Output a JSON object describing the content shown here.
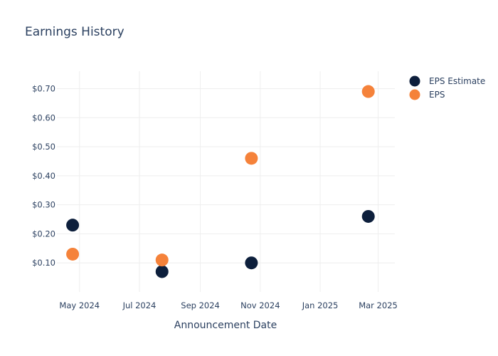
{
  "chart_data": {
    "type": "scatter",
    "title": "Earnings History",
    "xlabel": "Announcement Date",
    "ylabel": "",
    "x_ticks": [
      "May 2024",
      "Jul 2024",
      "Sep 2024",
      "Nov 2024",
      "Jan 2025",
      "Mar 2025"
    ],
    "y_ticks": [
      "$0.10",
      "$0.20",
      "$0.30",
      "$0.40",
      "$0.50",
      "$0.60",
      "$0.70"
    ],
    "xlim": [
      "2024-04-08",
      "2025-03-18"
    ],
    "ylim": [
      0,
      0.76
    ],
    "grid": true,
    "legend_position": "top-right",
    "series": [
      {
        "name": "EPS Estimate",
        "color": "#0d1f3c",
        "points": [
          {
            "x": "2024-04-24",
            "y": 0.23
          },
          {
            "x": "2024-07-24",
            "y": 0.07
          },
          {
            "x": "2024-10-23",
            "y": 0.1
          },
          {
            "x": "2025-02-19",
            "y": 0.26
          }
        ]
      },
      {
        "name": "EPS",
        "color": "#f5823a",
        "points": [
          {
            "x": "2024-04-24",
            "y": 0.13
          },
          {
            "x": "2024-07-24",
            "y": 0.11
          },
          {
            "x": "2024-10-23",
            "y": 0.46
          },
          {
            "x": "2025-02-19",
            "y": 0.69
          }
        ]
      }
    ]
  }
}
